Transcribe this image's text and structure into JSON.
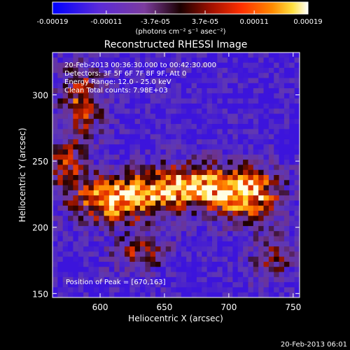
{
  "colorbar": {
    "tick_labels": [
      "-0.00019",
      "-0.00011",
      "-3.7e-05",
      "3.7e-05",
      "0.00011",
      "0.00019"
    ],
    "tick_values": [
      -0.00019,
      -0.00011,
      -3.7e-05,
      3.7e-05,
      0.00011,
      0.00019
    ],
    "range": [
      -0.00019,
      0.00019
    ],
    "units": "(photons cm⁻² s⁻¹ asec⁻²)",
    "colors": [
      "#0000ff",
      "#5a2ad9",
      "#7c3c9e",
      "#2a0000",
      "#a01000",
      "#ff3000",
      "#ff8000",
      "#ffd020",
      "#ffffff"
    ]
  },
  "image": {
    "title": "Reconstructed RHESSI Image",
    "info_lines": [
      "20-Feb-2013 00:36:30.000 to 00:42:30.000",
      "Detectors: 3F 5F 6F 7F 8F 9F, Att 0",
      "Energy Range: 12.0 - 25.0 keV",
      "Clean    Total counts: 7.98E+03"
    ],
    "peak_label": "Position of Peak = [670,163]",
    "xlabel": "Heliocentric X (arcsec)",
    "ylabel": "Heliocentric Y (arcsec)",
    "x_ticks": [
      "600",
      "650",
      "700",
      "750"
    ],
    "y_ticks": [
      "150",
      "200",
      "250",
      "300"
    ],
    "xlim": [
      563,
      755
    ],
    "ylim": [
      147,
      332
    ]
  },
  "footer": {
    "timestamp": "20-Feb-2013 06:01"
  }
}
